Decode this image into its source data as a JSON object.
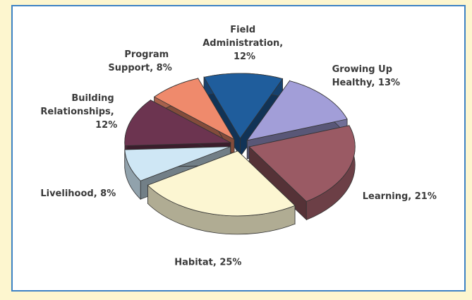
{
  "chart_data": {
    "type": "pie",
    "values": [
      12,
      13,
      21,
      25,
      8,
      12,
      8
    ],
    "value_labels": [
      "Field Administration, 12%",
      "Growing Up Healthy, 13%",
      "Learning, 21%",
      "Habitat, 25%",
      "Livelihood, 8%",
      "Building Relationships, 12%",
      "Program Support, 8%"
    ],
    "colors": [
      "#1f5d9c",
      "#a29ed8",
      "#9a5a64",
      "#fcf6d2",
      "#cfe7f5",
      "#6c3450",
      "#ef8a6c"
    ]
  }
}
